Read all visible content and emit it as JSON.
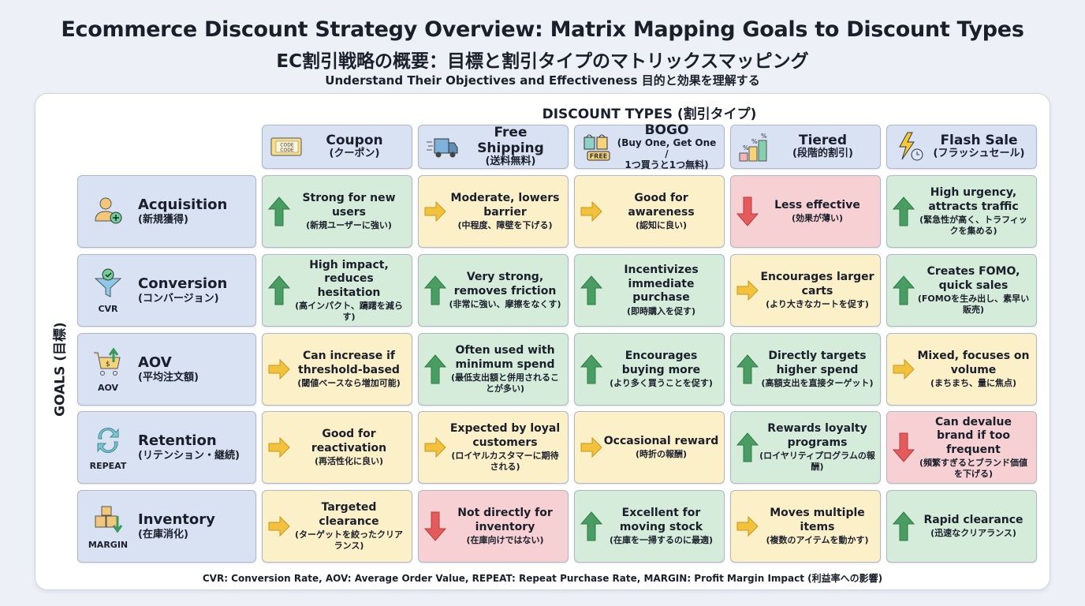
{
  "title": "Ecommerce Discount Strategy Overview: Matrix Mapping Goals to Discount Types",
  "title_jp": "EC割引戦略の概要：目標と割引タイプのマトリックスマッピング",
  "subtitle": "Understand Their Objectives and Effectiveness 目的と効果を理解する",
  "columns_heading": "DISCOUNT TYPES (割引タイプ)",
  "rows_heading": "GOALS (目標)",
  "colors": {
    "up": "#4a9d62",
    "neutral": "#f3c23c",
    "down": "#e35b5b",
    "header_bg": "#d8e2f3"
  },
  "discount_types": [
    {
      "en": "Coupon",
      "jp": "(クーポン)",
      "icon": "coupon-code-icon",
      "icon_text": "CODE"
    },
    {
      "en": "Free Shipping",
      "jp": "(送料無料)",
      "icon": "delivery-truck-icon"
    },
    {
      "en": "BOGO",
      "jp": "(Buy One, Get One /",
      "jp2": "1つ買うと1つ無料)",
      "icon": "shopping-bags-free-icon",
      "icon_text": "FREE"
    },
    {
      "en": "Tiered",
      "jp": "(段階的割引)",
      "icon": "tiered-bars-percent-icon",
      "icon_text": "%"
    },
    {
      "en": "Flash Sale",
      "jp": "(フラッシュセール)",
      "icon": "lightning-timer-icon"
    }
  ],
  "goals": [
    {
      "en": "Acquisition",
      "jp": "(新規獲得)",
      "abbr": "",
      "icon": "user-add-icon"
    },
    {
      "en": "Conversion",
      "jp": "(コンバージョン)",
      "abbr": "CVR",
      "icon": "funnel-check-icon"
    },
    {
      "en": "AOV",
      "jp": "(平均注文額)",
      "abbr": "AOV",
      "icon": "cart-dollar-up-icon"
    },
    {
      "en": "Retention",
      "jp": "(リテンション・継続)",
      "abbr": "REPEAT",
      "icon": "refresh-cycle-icon"
    },
    {
      "en": "Inventory",
      "jp": "(在庫消化)",
      "abbr": "MARGIN",
      "icon": "boxes-down-icon"
    }
  ],
  "matrix": [
    [
      {
        "rating": "up",
        "en": "Strong for new users",
        "jp": "(新規ユーザーに強い)"
      },
      {
        "rating": "neutral",
        "en": "Moderate, lowers barrier",
        "jp": "(中程度、障壁を下げる)"
      },
      {
        "rating": "neutral",
        "en": "Good for awareness",
        "jp": "(認知に良い)"
      },
      {
        "rating": "down",
        "en": "Less effective",
        "jp": "(効果が薄い)"
      },
      {
        "rating": "up",
        "en": "High urgency, attracts traffic",
        "jp": "(緊急性が高く、トラフィックを集める)"
      }
    ],
    [
      {
        "rating": "up",
        "en": "High impact, reduces hesitation",
        "jp": "(高インパクト、躊躇を減らす)"
      },
      {
        "rating": "up",
        "en": "Very strong, removes friction",
        "jp": "(非常に強い、摩擦をなくす)"
      },
      {
        "rating": "up",
        "en": "Incentivizes immediate purchase",
        "jp": "(即時購入を促す)"
      },
      {
        "rating": "neutral",
        "en": "Encourages larger carts",
        "jp": "(より大きなカートを促す)"
      },
      {
        "rating": "up",
        "en": "Creates FOMO, quick sales",
        "jp": "(FOMOを生み出し、素早い販売)"
      }
    ],
    [
      {
        "rating": "neutral",
        "en": "Can increase if threshold-based",
        "jp": "(閾値ベースなら増加可能)"
      },
      {
        "rating": "up",
        "en": "Often used with minimum spend",
        "jp": "(最低支出額と併用されることが多い)"
      },
      {
        "rating": "up",
        "en": "Encourages buying more",
        "jp": "(より多く買うことを促す)"
      },
      {
        "rating": "up",
        "en": "Directly targets higher spend",
        "jp": "(高額支出を直接ターゲット)"
      },
      {
        "rating": "neutral",
        "en": "Mixed, focuses on volume",
        "jp": "(まちまち、量に焦点)"
      }
    ],
    [
      {
        "rating": "neutral",
        "en": "Good for reactivation",
        "jp": "(再活性化に良い)"
      },
      {
        "rating": "neutral",
        "en": "Expected by loyal customers",
        "jp": "(ロイヤルカスタマーに期待される)"
      },
      {
        "rating": "neutral",
        "en": "Occasional reward",
        "jp": "(時折の報酬)"
      },
      {
        "rating": "up",
        "en": "Rewards loyalty programs",
        "jp": "(ロイヤリティプログラムの報酬)"
      },
      {
        "rating": "down",
        "en": "Can devalue brand if too frequent",
        "jp": "(頻繁すぎるとブランド価値を下げる)"
      }
    ],
    [
      {
        "rating": "neutral",
        "en": "Targeted clearance",
        "jp": "(ターゲットを絞ったクリアランス)"
      },
      {
        "rating": "down",
        "en": "Not directly for inventory",
        "jp": "(在庫向けではない)"
      },
      {
        "rating": "up",
        "en": "Excellent for moving stock",
        "jp": "(在庫を一掃するのに最適)"
      },
      {
        "rating": "neutral",
        "en": "Moves multiple items",
        "jp": "(複数のアイテムを動かす)"
      },
      {
        "rating": "up",
        "en": "Rapid clearance",
        "jp": "(迅速なクリアランス)"
      }
    ]
  ],
  "footnote": "CVR: Conversion Rate, AOV: Average Order Value, REPEAT: Repeat Purchase Rate, MARGIN: Profit Margin Impact (利益率への影響)"
}
